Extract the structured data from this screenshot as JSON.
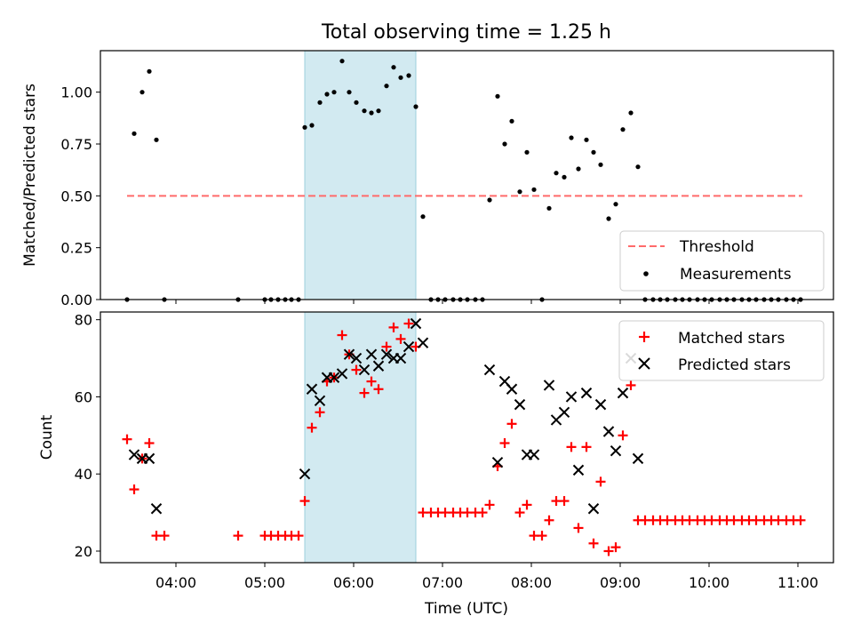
{
  "figure": {
    "title": "Total observing time = 1.25 h",
    "xlabel": "Time (UTC)"
  },
  "chart_data": [
    {
      "type": "scatter",
      "title": "Total observing time = 1.25 h",
      "ylabel": "Matched/Predicted stars",
      "x_unit": "UTC hours",
      "xlim": [
        3.15,
        11.4
      ],
      "ylim": [
        0,
        1.2
      ],
      "yticks": [
        0.0,
        0.25,
        0.5,
        0.75,
        1.0
      ],
      "ytick_labels": [
        "0.00",
        "0.25",
        "0.50",
        "0.75",
        "1.00"
      ],
      "shaded_region": {
        "x": [
          5.45,
          6.7
        ],
        "color": "#add8e6"
      },
      "legend_position": "lower-right",
      "series": [
        {
          "name": "Threshold",
          "kind": "line",
          "style": "dashed",
          "color": "#ff6b6b",
          "x": [
            3.45,
            11.05
          ],
          "y": [
            0.5,
            0.5
          ]
        },
        {
          "name": "Measurements",
          "kind": "scatter",
          "marker": "dot",
          "color": "#000000",
          "points": [
            [
              3.45,
              0.0
            ],
            [
              3.53,
              0.8
            ],
            [
              3.62,
              1.0
            ],
            [
              3.7,
              1.1
            ],
            [
              3.78,
              0.77
            ],
            [
              3.87,
              0.0
            ],
            [
              4.7,
              0.0
            ],
            [
              5.0,
              0.0
            ],
            [
              5.07,
              0.0
            ],
            [
              5.15,
              0.0
            ],
            [
              5.23,
              0.0
            ],
            [
              5.3,
              0.0
            ],
            [
              5.38,
              0.0
            ],
            [
              5.45,
              0.83
            ],
            [
              5.53,
              0.84
            ],
            [
              5.62,
              0.95
            ],
            [
              5.7,
              0.99
            ],
            [
              5.78,
              1.0
            ],
            [
              5.87,
              1.15
            ],
            [
              5.95,
              1.0
            ],
            [
              6.03,
              0.95
            ],
            [
              6.12,
              0.91
            ],
            [
              6.2,
              0.9
            ],
            [
              6.28,
              0.91
            ],
            [
              6.37,
              1.03
            ],
            [
              6.45,
              1.12
            ],
            [
              6.53,
              1.07
            ],
            [
              6.62,
              1.08
            ],
            [
              6.7,
              0.93
            ],
            [
              6.78,
              0.4
            ],
            [
              6.87,
              0.0
            ],
            [
              6.95,
              0.0
            ],
            [
              7.03,
              0.0
            ],
            [
              7.12,
              0.0
            ],
            [
              7.2,
              0.0
            ],
            [
              7.28,
              0.0
            ],
            [
              7.37,
              0.0
            ],
            [
              7.45,
              0.0
            ],
            [
              7.53,
              0.48
            ],
            [
              7.62,
              0.98
            ],
            [
              7.7,
              0.75
            ],
            [
              7.78,
              0.86
            ],
            [
              7.87,
              0.52
            ],
            [
              7.95,
              0.71
            ],
            [
              8.03,
              0.53
            ],
            [
              8.12,
              0.0
            ],
            [
              8.2,
              0.44
            ],
            [
              8.28,
              0.61
            ],
            [
              8.37,
              0.59
            ],
            [
              8.45,
              0.78
            ],
            [
              8.53,
              0.63
            ],
            [
              8.62,
              0.77
            ],
            [
              8.7,
              0.71
            ],
            [
              8.78,
              0.65
            ],
            [
              8.87,
              0.39
            ],
            [
              8.95,
              0.46
            ],
            [
              9.03,
              0.82
            ],
            [
              9.12,
              0.9
            ],
            [
              9.2,
              0.64
            ],
            [
              9.28,
              0.0
            ],
            [
              9.37,
              0.0
            ],
            [
              9.45,
              0.0
            ],
            [
              9.53,
              0.0
            ],
            [
              9.62,
              0.0
            ],
            [
              9.7,
              0.0
            ],
            [
              9.78,
              0.0
            ],
            [
              9.87,
              0.0
            ],
            [
              9.95,
              0.0
            ],
            [
              10.03,
              0.0
            ],
            [
              10.12,
              0.0
            ],
            [
              10.2,
              0.0
            ],
            [
              10.28,
              0.0
            ],
            [
              10.37,
              0.0
            ],
            [
              10.45,
              0.0
            ],
            [
              10.53,
              0.0
            ],
            [
              10.62,
              0.0
            ],
            [
              10.7,
              0.0
            ],
            [
              10.78,
              0.0
            ],
            [
              10.87,
              0.0
            ],
            [
              10.95,
              0.0
            ],
            [
              11.03,
              0.0
            ]
          ]
        }
      ]
    },
    {
      "type": "scatter",
      "xlabel": "Time (UTC)",
      "ylabel": "Count",
      "x_unit": "UTC hours",
      "xlim": [
        3.15,
        11.4
      ],
      "ylim": [
        17,
        82
      ],
      "yticks": [
        20,
        40,
        60,
        80
      ],
      "ytick_labels": [
        "20",
        "40",
        "60",
        "80"
      ],
      "xticks": [
        4,
        5,
        6,
        7,
        8,
        9,
        10,
        11
      ],
      "xtick_labels": [
        "04:00",
        "05:00",
        "06:00",
        "07:00",
        "08:00",
        "09:00",
        "10:00",
        "11:00"
      ],
      "shaded_region": {
        "x": [
          5.45,
          6.7
        ],
        "color": "#add8e6"
      },
      "legend_position": "upper-right",
      "series": [
        {
          "name": "Matched stars",
          "kind": "scatter",
          "marker": "plus",
          "color": "#ff0000",
          "points": [
            [
              3.45,
              49
            ],
            [
              3.53,
              36
            ],
            [
              3.62,
              44
            ],
            [
              3.7,
              48
            ],
            [
              3.78,
              24
            ],
            [
              3.87,
              24
            ],
            [
              4.7,
              24
            ],
            [
              5.0,
              24
            ],
            [
              5.07,
              24
            ],
            [
              5.15,
              24
            ],
            [
              5.23,
              24
            ],
            [
              5.3,
              24
            ],
            [
              5.38,
              24
            ],
            [
              5.45,
              33
            ],
            [
              5.53,
              52
            ],
            [
              5.62,
              56
            ],
            [
              5.7,
              64
            ],
            [
              5.78,
              65
            ],
            [
              5.87,
              76
            ],
            [
              5.95,
              71
            ],
            [
              6.03,
              67
            ],
            [
              6.12,
              61
            ],
            [
              6.2,
              64
            ],
            [
              6.28,
              62
            ],
            [
              6.37,
              73
            ],
            [
              6.45,
              78
            ],
            [
              6.53,
              75
            ],
            [
              6.62,
              79
            ],
            [
              6.7,
              73
            ],
            [
              6.78,
              30
            ],
            [
              6.87,
              30
            ],
            [
              6.95,
              30
            ],
            [
              7.03,
              30
            ],
            [
              7.12,
              30
            ],
            [
              7.2,
              30
            ],
            [
              7.28,
              30
            ],
            [
              7.37,
              30
            ],
            [
              7.45,
              30
            ],
            [
              7.53,
              32
            ],
            [
              7.62,
              42
            ],
            [
              7.7,
              48
            ],
            [
              7.78,
              53
            ],
            [
              7.87,
              30
            ],
            [
              7.95,
              32
            ],
            [
              8.03,
              24
            ],
            [
              8.12,
              24
            ],
            [
              8.2,
              28
            ],
            [
              8.28,
              33
            ],
            [
              8.37,
              33
            ],
            [
              8.45,
              47
            ],
            [
              8.53,
              26
            ],
            [
              8.62,
              47
            ],
            [
              8.7,
              22
            ],
            [
              8.78,
              38
            ],
            [
              8.87,
              20
            ],
            [
              8.95,
              21
            ],
            [
              9.03,
              50
            ],
            [
              9.12,
              63
            ],
            [
              9.2,
              28
            ],
            [
              9.28,
              28
            ],
            [
              9.37,
              28
            ],
            [
              9.45,
              28
            ],
            [
              9.53,
              28
            ],
            [
              9.62,
              28
            ],
            [
              9.7,
              28
            ],
            [
              9.78,
              28
            ],
            [
              9.87,
              28
            ],
            [
              9.95,
              28
            ],
            [
              10.03,
              28
            ],
            [
              10.12,
              28
            ],
            [
              10.2,
              28
            ],
            [
              10.28,
              28
            ],
            [
              10.37,
              28
            ],
            [
              10.45,
              28
            ],
            [
              10.53,
              28
            ],
            [
              10.62,
              28
            ],
            [
              10.7,
              28
            ],
            [
              10.78,
              28
            ],
            [
              10.87,
              28
            ],
            [
              10.95,
              28
            ],
            [
              11.03,
              28
            ]
          ]
        },
        {
          "name": "Predicted stars",
          "kind": "scatter",
          "marker": "x",
          "color": "#000000",
          "points": [
            [
              3.53,
              45
            ],
            [
              3.62,
              44
            ],
            [
              3.7,
              44
            ],
            [
              3.78,
              31
            ],
            [
              5.45,
              40
            ],
            [
              5.53,
              62
            ],
            [
              5.62,
              59
            ],
            [
              5.7,
              65
            ],
            [
              5.78,
              65
            ],
            [
              5.87,
              66
            ],
            [
              5.95,
              71
            ],
            [
              6.03,
              70
            ],
            [
              6.12,
              67
            ],
            [
              6.2,
              71
            ],
            [
              6.28,
              68
            ],
            [
              6.37,
              71
            ],
            [
              6.45,
              70
            ],
            [
              6.53,
              70
            ],
            [
              6.62,
              73
            ],
            [
              6.7,
              79
            ],
            [
              6.78,
              74
            ],
            [
              7.53,
              67
            ],
            [
              7.62,
              43
            ],
            [
              7.7,
              64
            ],
            [
              7.78,
              62
            ],
            [
              7.87,
              58
            ],
            [
              7.95,
              45
            ],
            [
              8.03,
              45
            ],
            [
              8.2,
              63
            ],
            [
              8.28,
              54
            ],
            [
              8.37,
              56
            ],
            [
              8.45,
              60
            ],
            [
              8.53,
              41
            ],
            [
              8.62,
              61
            ],
            [
              8.7,
              31
            ],
            [
              8.78,
              58
            ],
            [
              8.87,
              51
            ],
            [
              8.95,
              46
            ],
            [
              9.03,
              61
            ],
            [
              9.12,
              70
            ],
            [
              9.2,
              44
            ]
          ]
        }
      ]
    }
  ]
}
